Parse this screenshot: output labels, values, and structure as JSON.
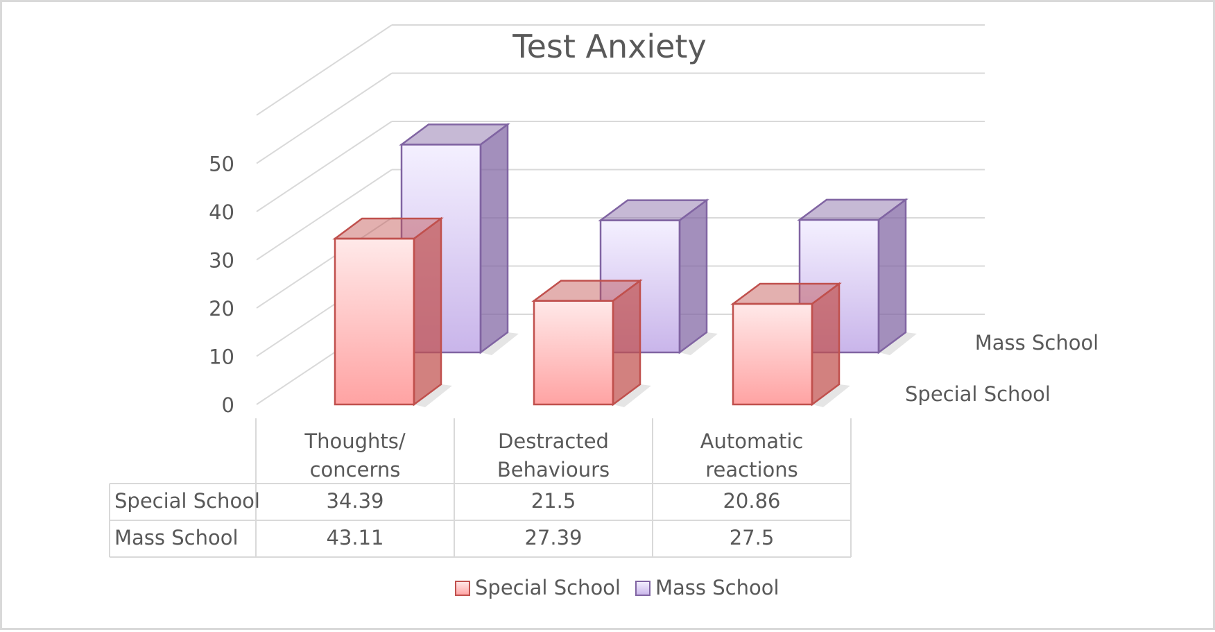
{
  "chart_data": {
    "type": "bar",
    "title": "Test Anxiety",
    "categories": [
      [
        "Thoughts/",
        "concerns"
      ],
      [
        "Destracted",
        "Behaviours"
      ],
      [
        "Automatic",
        "reactions"
      ]
    ],
    "series": [
      {
        "name": "Special School",
        "values": [
          34.39,
          21.5,
          20.86
        ]
      },
      {
        "name": "Mass School",
        "values": [
          43.11,
          27.39,
          27.5
        ]
      }
    ],
    "value_labels": [
      [
        "34.39",
        "21.5",
        "20.86"
      ],
      [
        "43.11",
        "27.39",
        "27.5"
      ]
    ],
    "y_ticks": [
      0,
      10,
      20,
      30,
      40,
      50
    ],
    "ylim": [
      0,
      60
    ],
    "grid": true,
    "legend_position": "bottom",
    "data_table": true,
    "colors": {
      "special_fill_top": "#ffe9e9",
      "special_fill_bottom": "#ffa3a3",
      "special_stroke": "#c0504d",
      "mass_fill_top": "#f4f0ff",
      "mass_fill_bottom": "#c9b5ea",
      "mass_stroke": "#8064a2",
      "grid": "#d9d9d9",
      "text": "#595959"
    }
  }
}
